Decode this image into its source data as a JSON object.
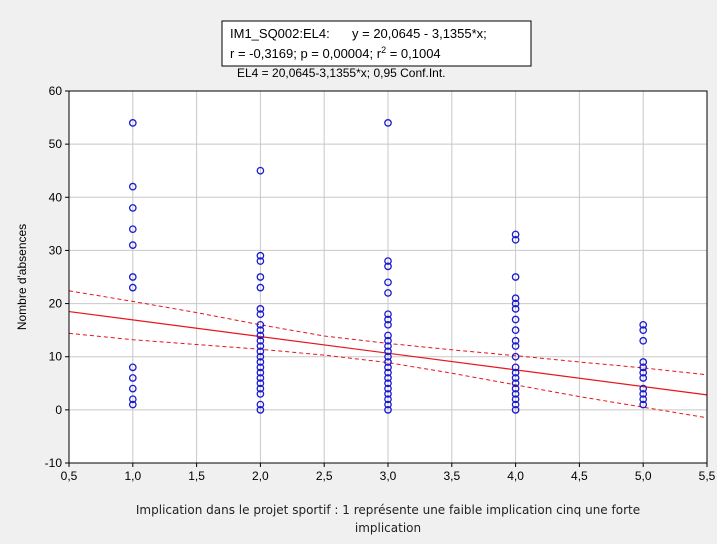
{
  "chart_data": {
    "type": "scatter",
    "title": "",
    "xlabel_lines": [
      "Implication dans le projet sportif : 1 représente une faible implication cinq une forte",
      "implication"
    ],
    "ylabel": "Nombre d'absences",
    "xlim": [
      0.5,
      5.5
    ],
    "ylim": [
      -10,
      60
    ],
    "xticks": [
      0.5,
      1.0,
      1.5,
      2.0,
      2.5,
      3.0,
      3.5,
      4.0,
      4.5,
      5.0,
      5.5
    ],
    "xtick_labels": [
      "0,5",
      "1,0",
      "1,5",
      "2,0",
      "2,5",
      "3,0",
      "3,5",
      "4,0",
      "4,5",
      "5,0",
      "5,5"
    ],
    "yticks": [
      -10,
      0,
      10,
      20,
      30,
      40,
      50,
      60
    ],
    "ytick_labels": [
      "-10",
      "0",
      "10",
      "20",
      "30",
      "40",
      "50",
      "60"
    ],
    "grid": true,
    "legend": {
      "line1_name": "IM1_SQ002:EL4:",
      "line1_eq": "y = 20,0645 - 3,1355*x;",
      "line2_a": "r = -0,3169; p = 0,00004; r",
      "line2_sup": "2",
      "line2_b": " = 0,1004",
      "line3": "EL4 = 20,0645-3,1355*x; 0,95 Conf.Int."
    },
    "regression": {
      "intercept": 20.0645,
      "slope": -3.1355
    },
    "confidence_band": {
      "upper": [
        [
          0.5,
          22.4
        ],
        [
          1.0,
          20.4
        ],
        [
          1.5,
          18.3
        ],
        [
          2.0,
          16.0
        ],
        [
          2.5,
          13.9
        ],
        [
          3.0,
          12.5
        ],
        [
          3.5,
          11.3
        ],
        [
          4.0,
          10.2
        ],
        [
          4.5,
          9.0
        ],
        [
          5.0,
          7.9
        ],
        [
          5.5,
          6.6
        ]
      ],
      "lower": [
        [
          0.5,
          14.4
        ],
        [
          1.0,
          13.2
        ],
        [
          1.5,
          12.3
        ],
        [
          2.0,
          11.4
        ],
        [
          2.5,
          10.3
        ],
        [
          3.0,
          8.9
        ],
        [
          3.5,
          6.9
        ],
        [
          4.0,
          4.7
        ],
        [
          4.5,
          2.5
        ],
        [
          5.0,
          0.5
        ],
        [
          5.5,
          -1.5
        ]
      ]
    },
    "series": [
      {
        "points": [
          [
            1,
            54
          ],
          [
            1,
            42
          ],
          [
            1,
            38
          ],
          [
            1,
            34
          ],
          [
            1,
            31
          ],
          [
            1,
            25
          ],
          [
            1,
            23
          ],
          [
            1,
            8
          ],
          [
            1,
            6
          ],
          [
            1,
            4
          ],
          [
            1,
            2
          ],
          [
            1,
            1
          ],
          [
            2,
            45
          ],
          [
            2,
            29
          ],
          [
            2,
            28
          ],
          [
            2,
            25
          ],
          [
            2,
            23
          ],
          [
            2,
            19
          ],
          [
            2,
            18
          ],
          [
            2,
            16
          ],
          [
            2,
            15
          ],
          [
            2,
            14
          ],
          [
            2,
            13
          ],
          [
            2,
            12
          ],
          [
            2,
            11
          ],
          [
            2,
            10
          ],
          [
            2,
            9
          ],
          [
            2,
            8
          ],
          [
            2,
            7
          ],
          [
            2,
            6
          ],
          [
            2,
            5
          ],
          [
            2,
            4
          ],
          [
            2,
            3
          ],
          [
            2,
            1
          ],
          [
            2,
            0
          ],
          [
            3,
            54
          ],
          [
            3,
            28
          ],
          [
            3,
            27
          ],
          [
            3,
            24
          ],
          [
            3,
            22
          ],
          [
            3,
            18
          ],
          [
            3,
            17
          ],
          [
            3,
            16
          ],
          [
            3,
            14
          ],
          [
            3,
            13
          ],
          [
            3,
            12
          ],
          [
            3,
            11
          ],
          [
            3,
            10
          ],
          [
            3,
            9
          ],
          [
            3,
            8
          ],
          [
            3,
            7
          ],
          [
            3,
            6
          ],
          [
            3,
            5
          ],
          [
            3,
            4
          ],
          [
            3,
            3
          ],
          [
            3,
            2
          ],
          [
            3,
            1
          ],
          [
            3,
            0
          ],
          [
            4,
            33
          ],
          [
            4,
            32
          ],
          [
            4,
            25
          ],
          [
            4,
            21
          ],
          [
            4,
            20
          ],
          [
            4,
            19
          ],
          [
            4,
            17
          ],
          [
            4,
            15
          ],
          [
            4,
            13
          ],
          [
            4,
            12
          ],
          [
            4,
            10
          ],
          [
            4,
            8
          ],
          [
            4,
            7
          ],
          [
            4,
            6
          ],
          [
            4,
            5
          ],
          [
            4,
            4
          ],
          [
            4,
            3
          ],
          [
            4,
            2
          ],
          [
            4,
            1
          ],
          [
            4,
            0
          ],
          [
            5,
            16
          ],
          [
            5,
            15
          ],
          [
            5,
            13
          ],
          [
            5,
            9
          ],
          [
            5,
            8
          ],
          [
            5,
            7
          ],
          [
            5,
            6
          ],
          [
            5,
            4
          ],
          [
            5,
            3
          ],
          [
            5,
            2
          ],
          [
            5,
            1
          ]
        ]
      }
    ],
    "colors": {
      "points": "#1a1acd",
      "regression": "#e8141c",
      "grid": "#c8c8c8",
      "plot_bg": "#ffffff",
      "page_bg": "#f0f0f0"
    }
  }
}
